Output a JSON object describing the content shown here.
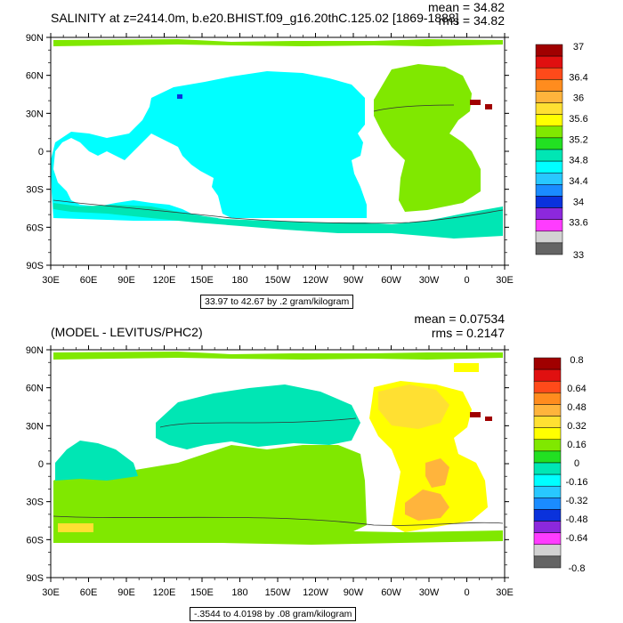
{
  "panels": [
    {
      "id": "top",
      "title": "SALINITY at z=2414.0m, b.e20.BHIST.f09_g16.20thC.125.02 [1869-1888]",
      "mean": "mean = 34.82",
      "rms": "rms = 34.82",
      "range_note": "33.97 to 42.67 by .2 gram/kilogram",
      "lat_labels": [
        "90N",
        "60N",
        "30N",
        "0",
        "30S",
        "60S",
        "90S"
      ],
      "lon_labels": [
        "30E",
        "60E",
        "90E",
        "120E",
        "150E",
        "180",
        "150W",
        "120W",
        "90W",
        "60W",
        "30W",
        "0",
        "30E"
      ],
      "colorbar_labels": [
        "37",
        "36.4",
        "36",
        "35.6",
        "35.2",
        "34.8",
        "34.4",
        "34",
        "33.6",
        "33"
      ],
      "colorbar_colors": [
        "#a00000",
        "#e01010",
        "#ff4a1a",
        "#ff8c1e",
        "#ffb43c",
        "#ffe032",
        "#ffff00",
        "#80e800",
        "#22e022",
        "#00e6b4",
        "#00ffff",
        "#28c8ff",
        "#1a8cff",
        "#0a32dc",
        "#8c28dc",
        "#ff3cff",
        "#d2d2d2",
        "#646464"
      ],
      "fill_regions": [
        {
          "label": "pacific-indian",
          "color": "#00ffff"
        },
        {
          "label": "atlantic",
          "color": "#80e800"
        },
        {
          "label": "southern",
          "color": "#00e6b4"
        },
        {
          "label": "arctic",
          "color": "#80e800"
        },
        {
          "label": "mediterranean",
          "color": "#a00000"
        },
        {
          "label": "deep-blue-spot",
          "color": "#0a32dc"
        }
      ]
    },
    {
      "id": "bottom",
      "title": "(MODEL - LEVITUS/PHC2)",
      "mean": "mean = 0.07534",
      "rms": "rms = 0.2147",
      "range_note": "-.3544 to 4.0198 by .08 gram/kilogram",
      "lat_labels": [
        "90N",
        "60N",
        "30N",
        "0",
        "30S",
        "60S",
        "90S"
      ],
      "lon_labels": [
        "30E",
        "60E",
        "90E",
        "120E",
        "150E",
        "180",
        "150W",
        "120W",
        "90W",
        "60W",
        "30W",
        "0",
        "30E"
      ],
      "colorbar_labels": [
        "0.8",
        "0.64",
        "0.48",
        "0.32",
        "0.16",
        "0",
        "-0.16",
        "-0.32",
        "-0.48",
        "-0.64",
        "-0.8"
      ],
      "colorbar_colors": [
        "#a00000",
        "#e01010",
        "#ff4a1a",
        "#ff8c1e",
        "#ffb43c",
        "#ffe032",
        "#ffff00",
        "#80e800",
        "#22e022",
        "#00e6b4",
        "#00ffff",
        "#28c8ff",
        "#1a8cff",
        "#0a32dc",
        "#8c28dc",
        "#ff3cff",
        "#d2d2d2",
        "#646464"
      ],
      "fill_regions": [
        {
          "label": "pacific-south",
          "color": "#80e800"
        },
        {
          "label": "pacific-north",
          "color": "#00e6b4"
        },
        {
          "label": "atlantic",
          "color": "#ffff00"
        },
        {
          "label": "atlantic-north",
          "color": "#ffe032"
        },
        {
          "label": "atlantic-south-core",
          "color": "#ffb43c"
        },
        {
          "label": "arctic",
          "color": "#80e800"
        },
        {
          "label": "indian-west",
          "color": "#ffff00"
        },
        {
          "label": "mediterranean",
          "color": "#a00000"
        }
      ]
    }
  ]
}
